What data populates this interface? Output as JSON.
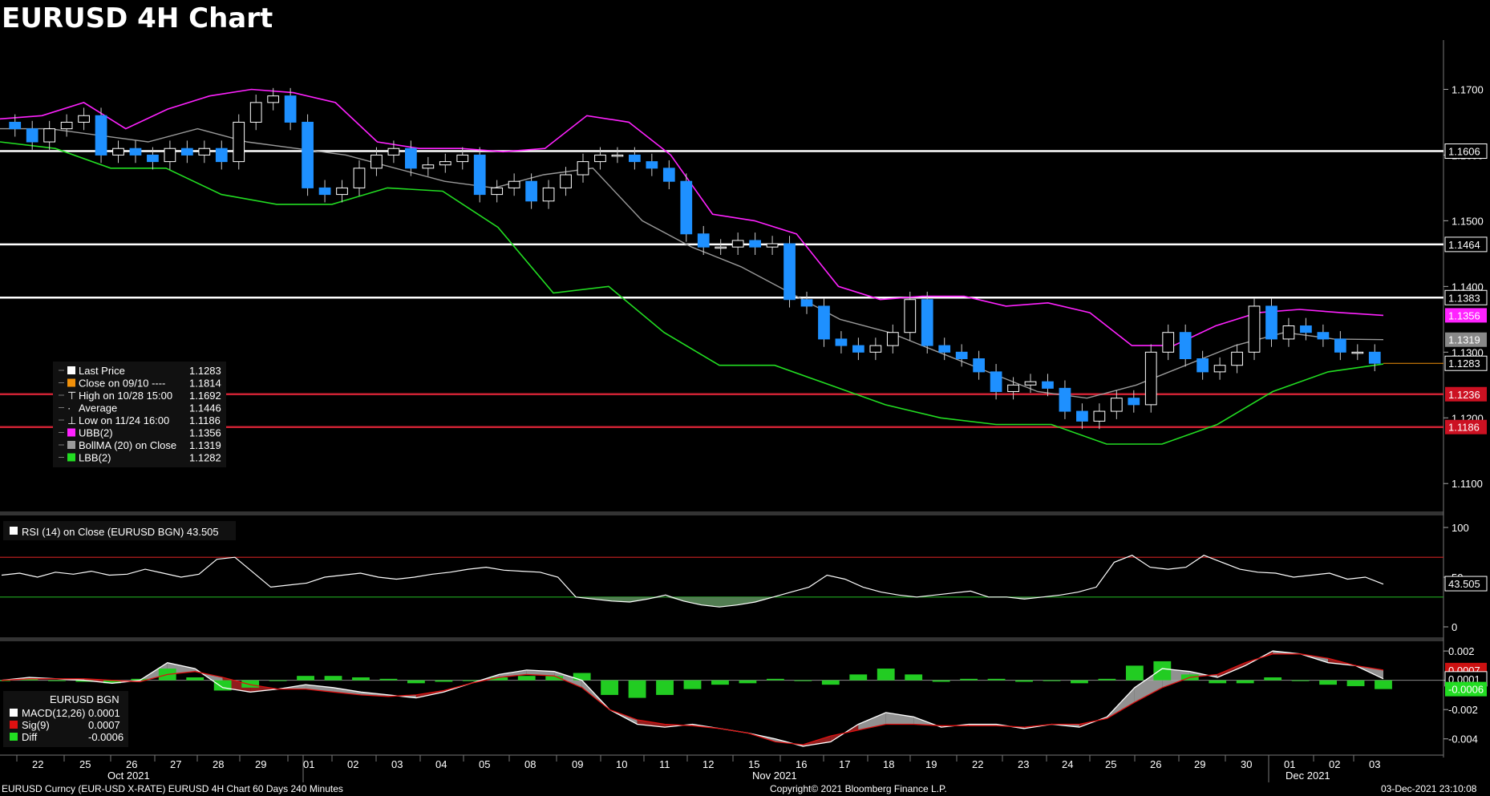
{
  "chart_data": {
    "type": "candlestick",
    "title": "EURUSD 4H Chart",
    "price_axis": {
      "ylim": [
        1.106,
        1.1775
      ],
      "ticks": [
        "1.1100",
        "1.1200",
        "1.1300",
        "1.1400",
        "1.1500",
        "1.1600",
        "1.1700"
      ]
    },
    "date_labels": [
      "22",
      "25",
      "26",
      "27",
      "28",
      "29",
      "01",
      "02",
      "03",
      "04",
      "05",
      "08",
      "09",
      "10",
      "11",
      "12",
      "15",
      "16",
      "17",
      "18",
      "19",
      "22",
      "23",
      "24",
      "25",
      "26",
      "29",
      "30",
      "01",
      "02",
      "03"
    ],
    "month_labels": [
      "Oct 2021",
      "Nov 2021",
      "Dec 2021"
    ],
    "horizontal_levels": [
      {
        "value": 1.1606,
        "label": "1.1606",
        "color": "#ffffff"
      },
      {
        "value": 1.1464,
        "label": "1.1464",
        "color": "#ffffff"
      },
      {
        "value": 1.1383,
        "label": "1.1383",
        "color": "#ffffff"
      },
      {
        "value": 1.1236,
        "label": "1.1236",
        "color": "#cc2233"
      },
      {
        "value": 1.1186,
        "label": "1.1186",
        "color": "#cc2233"
      }
    ],
    "value_tags": [
      {
        "value": 1.1356,
        "label": "1.1356",
        "bg": "#ff22ff",
        "fg": "#000000"
      },
      {
        "value": 1.1319,
        "label": "1.1319",
        "bg": "#888888",
        "fg": "#000000"
      },
      {
        "value": 1.1283,
        "label": "1.1283",
        "bg": "#000000",
        "fg": "#ffffff"
      },
      {
        "value": 1.1236,
        "label": "1.1236",
        "bg": "#cc1122",
        "fg": "#ffffff"
      },
      {
        "value": 1.1186,
        "label": "1.1186",
        "bg": "#cc1122",
        "fg": "#ffffff"
      }
    ],
    "close_path": [
      1.164,
      1.162,
      1.164,
      1.165,
      1.166,
      1.16,
      1.161,
      1.16,
      1.159,
      1.161,
      1.16,
      1.161,
      1.159,
      1.165,
      1.168,
      1.169,
      1.165,
      1.155,
      1.154,
      1.155,
      1.158,
      1.16,
      1.161,
      1.158,
      1.1585,
      1.159,
      1.16,
      1.154,
      1.155,
      1.156,
      1.153,
      1.155,
      1.157,
      1.159,
      1.16,
      1.16,
      1.159,
      1.158,
      1.156,
      1.148,
      1.146,
      1.146,
      1.147,
      1.146,
      1.1465,
      1.138,
      1.137,
      1.132,
      1.131,
      1.13,
      1.131,
      1.133,
      1.138,
      1.131,
      1.13,
      1.129,
      1.127,
      1.124,
      1.125,
      1.1255,
      1.1245,
      1.121,
      1.1195,
      1.121,
      1.123,
      1.122,
      1.13,
      1.133,
      1.129,
      1.127,
      1.128,
      1.13,
      1.137,
      1.132,
      1.134,
      1.133,
      1.132,
      1.13,
      1.13,
      1.1283
    ],
    "ubb_path": [
      1.1655,
      1.166,
      1.168,
      1.164,
      1.167,
      1.169,
      1.17,
      1.1695,
      1.168,
      1.162,
      1.161,
      1.161,
      1.1605,
      1.161,
      1.166,
      1.165,
      1.16,
      1.151,
      1.15,
      1.148,
      1.14,
      1.138,
      1.1385,
      1.1385,
      1.137,
      1.1375,
      1.136,
      1.131,
      1.131,
      1.134,
      1.136,
      1.1365,
      1.136,
      1.1356
    ],
    "mid_path": [
      1.164,
      1.164,
      1.163,
      1.162,
      1.164,
      1.162,
      1.161,
      1.16,
      1.158,
      1.156,
      1.155,
      1.157,
      1.158,
      1.15,
      1.146,
      1.143,
      1.139,
      1.135,
      1.133,
      1.13,
      1.127,
      1.124,
      1.123,
      1.125,
      1.128,
      1.131,
      1.133,
      1.132,
      1.1319
    ],
    "lbb_path": [
      1.162,
      1.161,
      1.158,
      1.158,
      1.154,
      1.1525,
      1.1525,
      1.155,
      1.1545,
      1.149,
      1.139,
      1.14,
      1.133,
      1.128,
      1.128,
      1.125,
      1.122,
      1.12,
      1.119,
      1.119,
      1.116,
      1.116,
      1.119,
      1.124,
      1.127,
      1.1282
    ],
    "legend": [
      {
        "color": "#ffffff",
        "label": "Last Price",
        "value": "1.1283"
      },
      {
        "color": "#f0900a",
        "label": "Close on 09/10 ----",
        "value": "1.1814"
      },
      {
        "color": "",
        "glyph": "⊤",
        "label": "High on 10/28 15:00",
        "value": "1.1692"
      },
      {
        "color": "",
        "glyph": "·",
        "label": "Average",
        "value": "1.1446"
      },
      {
        "color": "",
        "glyph": "⊥",
        "label": "Low on 11/24 16:00",
        "value": "1.1186"
      },
      {
        "color": "#ff22ff",
        "label": "UBB(2)",
        "value": "1.1356"
      },
      {
        "color": "#999999",
        "label": "BollMA (20)  on Close",
        "value": "1.1319"
      },
      {
        "color": "#22dd22",
        "label": "LBB(2)",
        "value": "1.1282"
      }
    ],
    "rsi": {
      "label": "RSI (14)  on Close (EURUSD BGN) 43.505",
      "ticks": [
        "100",
        "50",
        "0"
      ],
      "current": "43.505",
      "overbought": 70,
      "oversold": 30,
      "values": [
        52,
        54,
        50,
        55,
        53,
        56,
        52,
        53,
        58,
        54,
        50,
        53,
        68,
        70,
        55,
        40,
        42,
        44,
        50,
        52,
        54,
        50,
        48,
        50,
        53,
        55,
        58,
        60,
        57,
        56,
        55,
        50,
        30,
        28,
        26,
        25,
        28,
        32,
        26,
        22,
        20,
        22,
        25,
        30,
        35,
        40,
        52,
        48,
        40,
        35,
        32,
        30,
        32,
        34,
        36,
        30,
        30,
        28,
        30,
        32,
        35,
        40,
        65,
        72,
        60,
        58,
        60,
        72,
        65,
        58,
        55,
        54,
        50,
        52,
        54,
        48,
        50,
        43
      ]
    },
    "macd": {
      "legend_title": "EURUSD BGN",
      "legend": [
        {
          "color": "#ffffff",
          "label": "MACD(12,26)",
          "value": "0.0001"
        },
        {
          "color": "#dd1111",
          "label": "Sig(9)",
          "value": "0.0007"
        },
        {
          "color": "#22dd22",
          "label": "Diff",
          "value": "-0.0006"
        }
      ],
      "ticks": [
        "0.002",
        "0",
        "-0.002",
        "-0.004"
      ],
      "tags": [
        {
          "value": 0.0007,
          "label": "0.0007",
          "bg": "#cc1111"
        },
        {
          "value": 0.0001,
          "label": "0.0001",
          "bg": "#000000"
        },
        {
          "value": -0.0006,
          "label": "-0.0006",
          "bg": "#22dd22"
        }
      ],
      "macd_values": [
        0.0,
        0.0002,
        0.0001,
        0.0,
        -0.0002,
        0.0,
        0.0012,
        0.0008,
        -0.0005,
        -0.0008,
        -0.0006,
        -0.0003,
        -0.0005,
        -0.0008,
        -0.001,
        -0.0012,
        -0.0008,
        -0.0002,
        0.0004,
        0.0007,
        0.0006,
        0.0,
        -0.002,
        -0.003,
        -0.0032,
        -0.003,
        -0.0033,
        -0.0036,
        -0.004,
        -0.0045,
        -0.0042,
        -0.003,
        -0.0022,
        -0.0025,
        -0.0032,
        -0.003,
        -0.003,
        -0.0033,
        -0.003,
        -0.0032,
        -0.0025,
        -0.0005,
        0.0008,
        0.0006,
        0.0002,
        0.001,
        0.002,
        0.0018,
        0.0012,
        0.001,
        0.0001
      ],
      "sig_values": [
        0.0,
        0.0001,
        0.0001,
        0.0001,
        0.0,
        -0.0001,
        0.0004,
        0.0006,
        0.0002,
        -0.0003,
        -0.0006,
        -0.0006,
        -0.0008,
        -0.001,
        -0.0011,
        -0.001,
        -0.0007,
        -0.0002,
        0.0002,
        0.0004,
        0.0003,
        -0.0005,
        -0.002,
        -0.0027,
        -0.003,
        -0.0031,
        -0.0033,
        -0.0036,
        -0.0042,
        -0.0044,
        -0.0038,
        -0.0034,
        -0.003,
        -0.003,
        -0.0031,
        -0.0031,
        -0.0031,
        -0.0032,
        -0.003,
        -0.003,
        -0.0026,
        -0.0015,
        -0.0005,
        0.0002,
        0.0004,
        0.0012,
        0.0018,
        0.0018,
        0.0015,
        0.001,
        0.0007
      ],
      "diff_values": [
        0.0,
        0.0001,
        0.0,
        -0.0001,
        -0.0002,
        0.0001,
        0.0008,
        0.0002,
        -0.0007,
        -0.0005,
        0.0,
        0.0003,
        0.0003,
        0.0002,
        0.0001,
        -0.0002,
        -0.0001,
        0.0,
        0.0002,
        0.0003,
        0.0003,
        0.0005,
        -0.001,
        -0.0012,
        -0.001,
        -0.0006,
        -0.0003,
        -0.0002,
        0.0001,
        0.0,
        -0.0003,
        0.0004,
        0.0008,
        0.0004,
        -0.0001,
        0.0001,
        0.0001,
        -0.0001,
        0.0,
        -0.0002,
        0.0001,
        0.001,
        0.0013,
        0.0004,
        -0.0002,
        -0.0002,
        0.0002,
        0.0,
        -0.0003,
        -0.0004,
        -0.0006
      ]
    },
    "footer_left": "EURUSD Curncy (EUR-USD X-RATE) EURUSD 4H Chart 60 Days 240 Minutes",
    "footer_center": "Copyright© 2021 Bloomberg Finance L.P.",
    "footer_right": "03-Dec-2021 23:10:08"
  }
}
